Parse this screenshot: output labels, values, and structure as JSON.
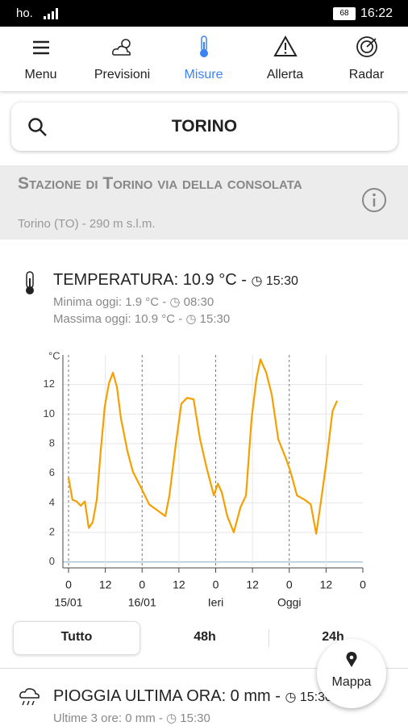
{
  "status_bar": {
    "carrier": "ho.",
    "battery": "68",
    "time": "16:22"
  },
  "nav": {
    "items": [
      "Menu",
      "Previsioni",
      "Misure",
      "Allerta",
      "Radar"
    ]
  },
  "search": {
    "query": "TORINO"
  },
  "station": {
    "title": "Stazione di Torino via della consolata",
    "subtitle": "Torino (TO) - 290 m s.l.m."
  },
  "temperature": {
    "heading": "TEMPERATURA: 10.9 °C - ",
    "heading_time": "15:30",
    "min": "Minima oggi: 1.9 °C - ",
    "min_time": "08:30",
    "max": "Massima oggi: 10.9 °C - ",
    "max_time": "15:30"
  },
  "chart_data": {
    "type": "line",
    "y_label": "°C",
    "color": "#f5a000",
    "x": [
      0,
      1.3,
      2.6,
      4,
      5.3,
      6.6,
      7.9,
      9.2,
      10.5,
      11.8,
      13.2,
      14.5,
      15.8,
      17.1,
      19.2,
      21,
      23.7,
      26.3,
      28.9,
      31.6,
      32.9,
      35,
      36.8,
      38.7,
      40.8,
      42.9,
      45,
      47.4,
      48.7,
      50,
      51.8,
      53.9,
      56.1,
      57.9,
      59.7,
      61.3,
      62.6,
      64.5,
      66.3,
      68.4,
      71.1,
      72.4,
      74.5,
      77.1,
      79,
      80.8,
      82.4,
      84.2,
      86.1,
      87.6
    ],
    "values": [
      5.7,
      4.2,
      4.1,
      3.8,
      4.1,
      2.3,
      2.7,
      4.2,
      7.5,
      10.5,
      12.1,
      12.8,
      11.8,
      9.7,
      7.5,
      6.1,
      5.0,
      3.9,
      3.5,
      3.1,
      4.5,
      8.0,
      10.7,
      11.1,
      11.0,
      8.3,
      6.4,
      4.5,
      5.3,
      4.7,
      3.1,
      2.0,
      3.7,
      4.5,
      9.7,
      12.4,
      13.7,
      12.8,
      11.3,
      8.3,
      6.9,
      6.1,
      4.5,
      4.2,
      3.9,
      1.9,
      4.2,
      6.9,
      10.2,
      10.9
    ],
    "xlim": [
      0,
      96
    ],
    "ylim": [
      -0.4,
      14
    ],
    "yticks": [
      0,
      2,
      4,
      6,
      8,
      10,
      12
    ],
    "xticks": [
      0,
      12,
      {
        "value": 24,
        "label": "0"
      },
      {
        "value": 36,
        "label": "12"
      },
      {
        "value": 48,
        "label": "0"
      },
      {
        "value": 60,
        "label": "12"
      },
      {
        "value": 72,
        "label": "0"
      },
      {
        "value": 84,
        "label": "12"
      },
      {
        "value": 96,
        "label": "0"
      }
    ],
    "day_labels": [
      {
        "value": 0,
        "label": "15/01"
      },
      {
        "value": 24,
        "label": "16/01"
      },
      {
        "value": 48,
        "label": "Ieri"
      },
      {
        "value": 72,
        "label": "Oggi"
      }
    ],
    "grid": true
  },
  "tabs": [
    "Tutto",
    "48h",
    "24h"
  ],
  "map_button": "Mappa",
  "rain": {
    "heading": "PIOGGIA ULTIMA ORA: 0 mm - ",
    "heading_time": "15:30",
    "sub": "Ultime 3 ore: 0 mm - ",
    "sub_time": "15:30"
  }
}
